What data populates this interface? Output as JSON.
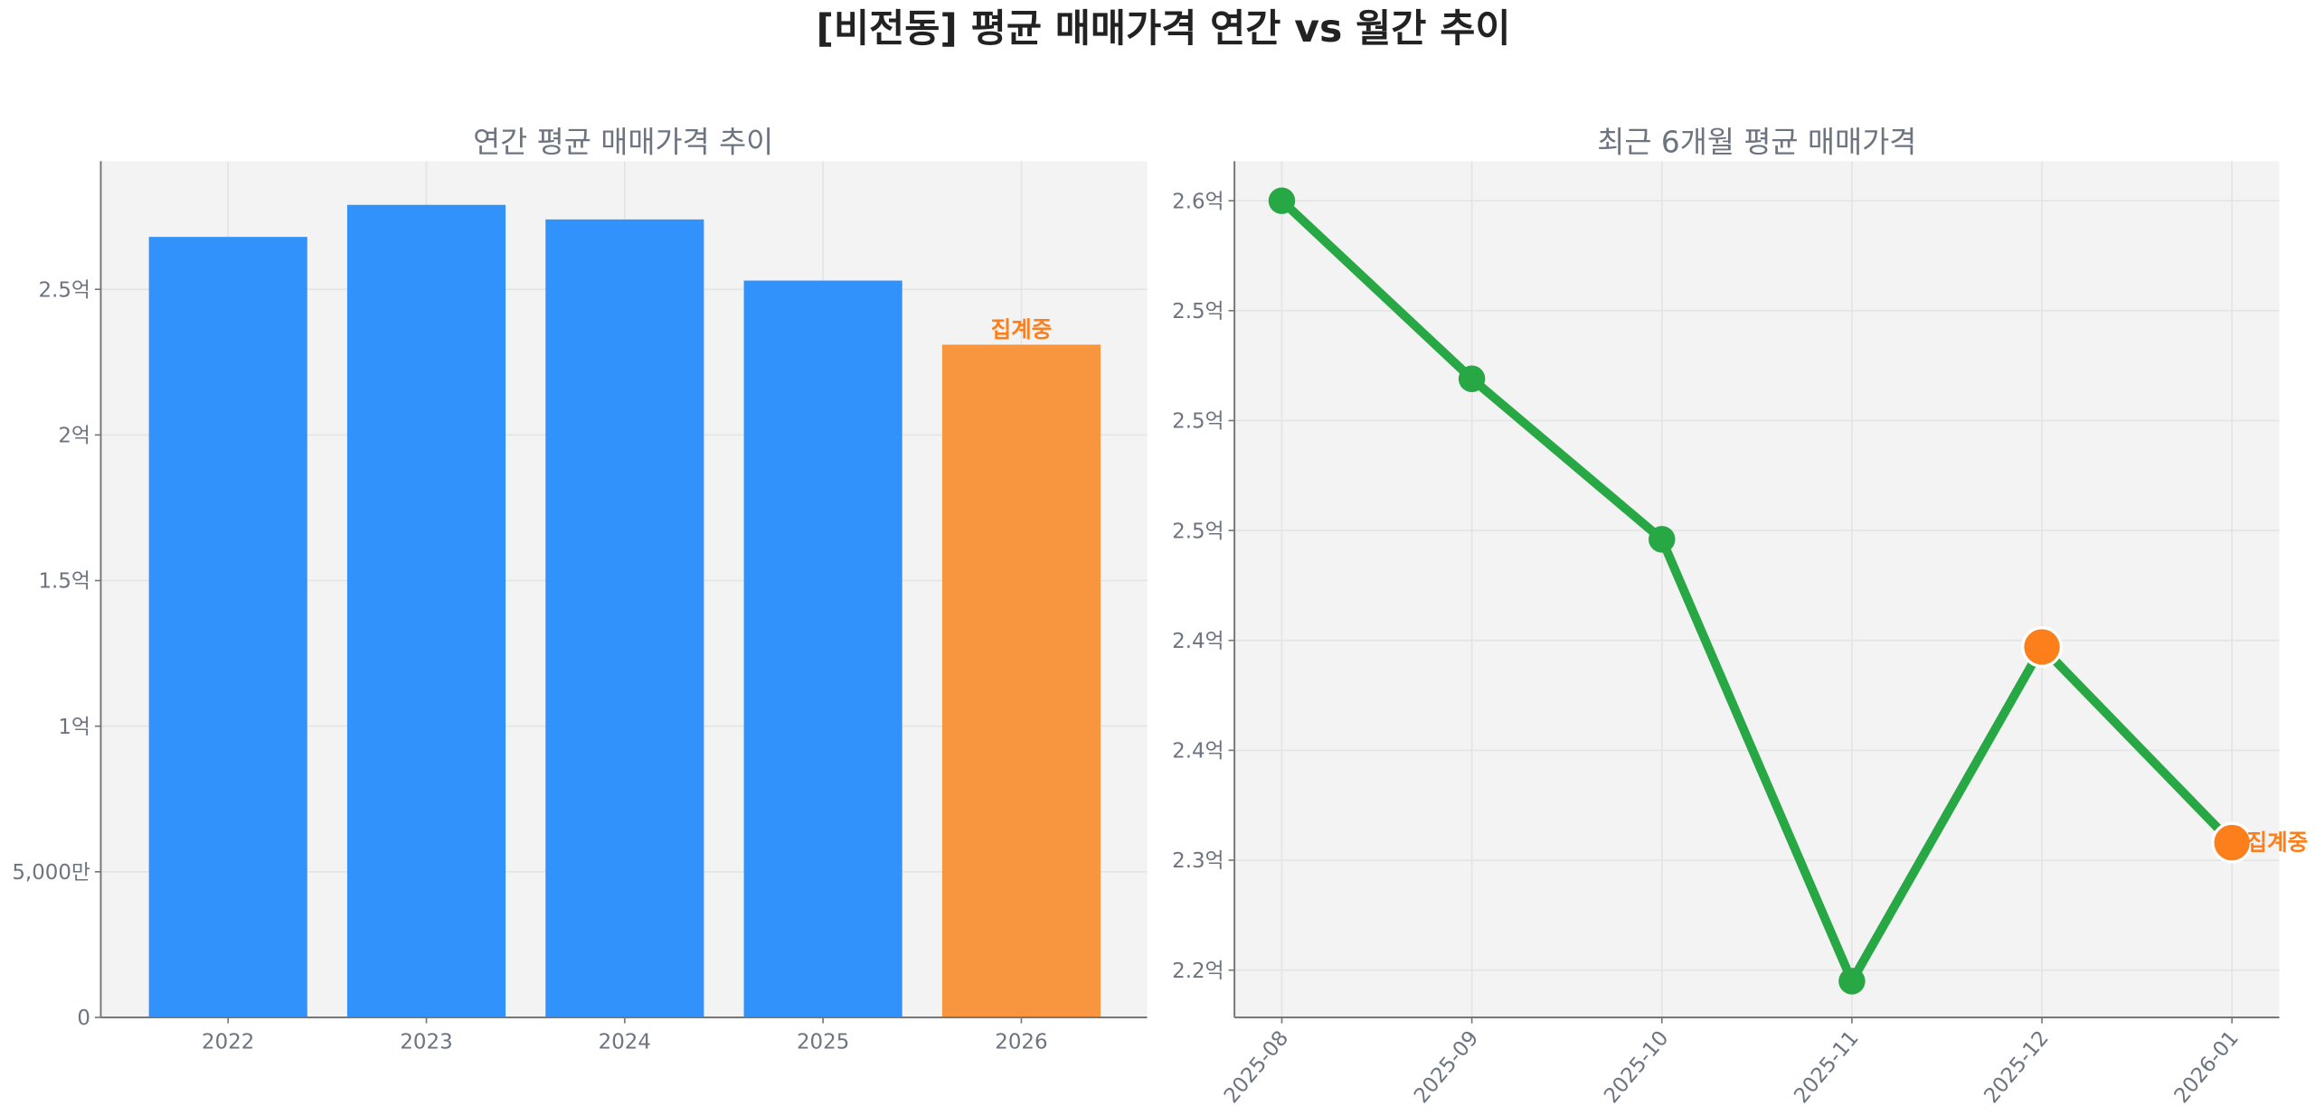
{
  "title": "[비전동] 평균 매매가격 연간 vs 월간 추이",
  "colors": {
    "bar": "#3092fa",
    "bar_partial": "#f89640",
    "line": "#28a745",
    "marker_partial": "#fd7f1c",
    "note": "#fd7f1c",
    "panel": "#f3f3f3"
  },
  "chart_data": [
    {
      "type": "bar",
      "title": "연간 평균 매매가격 추이",
      "unit": "억",
      "categories": [
        "2022",
        "2023",
        "2024",
        "2025",
        "2026"
      ],
      "values": [
        2.68,
        2.79,
        2.74,
        2.53,
        2.31
      ],
      "partial_index": 4,
      "annotation": "집계중",
      "yticks": [
        0,
        0.5,
        1,
        1.5,
        2,
        2.5
      ],
      "ytick_labels": [
        "0",
        "5,000만",
        "1억",
        "1.5억",
        "2억",
        "2.5억"
      ],
      "ylim": [
        0,
        2.94
      ],
      "grid": true
    },
    {
      "type": "line",
      "title": "최근 6개월 평균 매매가격",
      "unit": "억",
      "categories": [
        "2025-08",
        "2025-09",
        "2025-10",
        "2025-11",
        "2025-12",
        "2026-01"
      ],
      "values": [
        2.6,
        2.519,
        2.446,
        2.245,
        2.397,
        2.308
      ],
      "partial_indices": [
        4,
        5
      ],
      "annotation": "집계중",
      "yticks": [
        2.6,
        2.55,
        2.5,
        2.45,
        2.4,
        2.35,
        2.3,
        2.25
      ],
      "ytick_labels": [
        "2.6억",
        "2.5억",
        "2.5억",
        "2.5억",
        "2.4억",
        "2.4억",
        "2.3억",
        "2.2억"
      ],
      "ylim": [
        2.2285,
        2.618
      ],
      "grid": true
    }
  ]
}
